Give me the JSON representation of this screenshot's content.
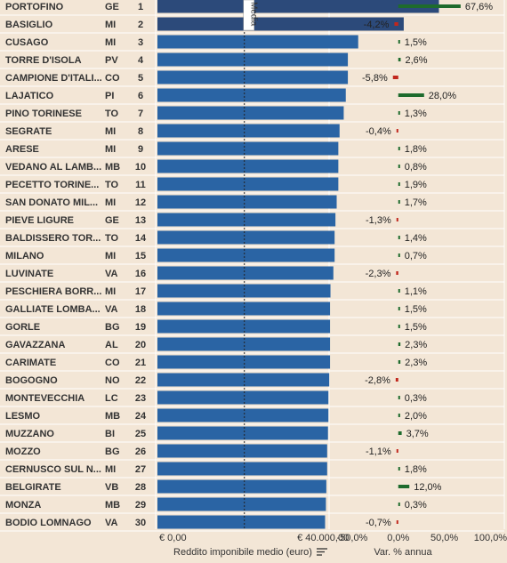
{
  "chart_data": {
    "type": "bar",
    "rows": [
      {
        "rank": "1",
        "name": "PORTOFINO",
        "prov": "GE",
        "reddito": 68000,
        "var": 67.6,
        "var_label": "67,6%"
      },
      {
        "rank": "2",
        "name": "BASIGLIO",
        "prov": "MI",
        "reddito": 59500,
        "var": -4.2,
        "var_label": "-4,2%"
      },
      {
        "rank": "3",
        "name": "CUSAGO",
        "prov": "MI",
        "reddito": 48500,
        "var": 1.5,
        "var_label": "1,5%"
      },
      {
        "rank": "4",
        "name": "TORRE D'ISOLA",
        "prov": "PV",
        "reddito": 46000,
        "var": 2.6,
        "var_label": "2,6%"
      },
      {
        "rank": "5",
        "name": "CAMPIONE D'ITALI...",
        "prov": "CO",
        "reddito": 46000,
        "var": -5.8,
        "var_label": "-5,8%"
      },
      {
        "rank": "6",
        "name": "LAJATICO",
        "prov": "PI",
        "reddito": 45500,
        "var": 28.0,
        "var_label": "28,0%"
      },
      {
        "rank": "7",
        "name": "PINO TORINESE",
        "prov": "TO",
        "reddito": 45000,
        "var": 1.3,
        "var_label": "1,3%"
      },
      {
        "rank": "8",
        "name": "SEGRATE",
        "prov": "MI",
        "reddito": 44000,
        "var": -0.4,
        "var_label": "-0,4%"
      },
      {
        "rank": "9",
        "name": "ARESE",
        "prov": "MI",
        "reddito": 43700,
        "var": 1.8,
        "var_label": "1,8%"
      },
      {
        "rank": "10",
        "name": "VEDANO AL LAMB...",
        "prov": "MB",
        "reddito": 43700,
        "var": 0.8,
        "var_label": "0,8%"
      },
      {
        "rank": "11",
        "name": "PECETTO TORINE...",
        "prov": "TO",
        "reddito": 43700,
        "var": 1.9,
        "var_label": "1,9%"
      },
      {
        "rank": "12",
        "name": "SAN DONATO MIL...",
        "prov": "MI",
        "reddito": 43300,
        "var": 1.7,
        "var_label": "1,7%"
      },
      {
        "rank": "13",
        "name": "PIEVE LIGURE",
        "prov": "GE",
        "reddito": 43000,
        "var": -1.3,
        "var_label": "-1,3%"
      },
      {
        "rank": "14",
        "name": "BALDISSERO TOR...",
        "prov": "TO",
        "reddito": 42800,
        "var": 1.4,
        "var_label": "1,4%"
      },
      {
        "rank": "15",
        "name": "MILANO",
        "prov": "MI",
        "reddito": 42800,
        "var": 0.7,
        "var_label": "0,7%"
      },
      {
        "rank": "16",
        "name": "LUVINATE",
        "prov": "VA",
        "reddito": 42500,
        "var": -2.3,
        "var_label": "-2,3%"
      },
      {
        "rank": "17",
        "name": "PESCHIERA BORR...",
        "prov": "MI",
        "reddito": 41800,
        "var": 1.1,
        "var_label": "1,1%"
      },
      {
        "rank": "18",
        "name": "GALLIATE LOMBA...",
        "prov": "VA",
        "reddito": 41700,
        "var": 1.5,
        "var_label": "1,5%"
      },
      {
        "rank": "19",
        "name": "GORLE",
        "prov": "BG",
        "reddito": 41700,
        "var": 1.5,
        "var_label": "1,5%"
      },
      {
        "rank": "20",
        "name": "GAVAZZANA",
        "prov": "AL",
        "reddito": 41700,
        "var": 2.3,
        "var_label": "2,3%"
      },
      {
        "rank": "21",
        "name": "CARIMATE",
        "prov": "CO",
        "reddito": 41700,
        "var": 2.3,
        "var_label": "2,3%"
      },
      {
        "rank": "22",
        "name": "BOGOGNO",
        "prov": "NO",
        "reddito": 41500,
        "var": -2.8,
        "var_label": "-2,8%"
      },
      {
        "rank": "23",
        "name": "MONTEVECCHIA",
        "prov": "LC",
        "reddito": 41300,
        "var": 0.3,
        "var_label": "0,3%"
      },
      {
        "rank": "24",
        "name": "LESMO",
        "prov": "MB",
        "reddito": 41300,
        "var": 2.0,
        "var_label": "2,0%"
      },
      {
        "rank": "25",
        "name": "MUZZANO",
        "prov": "BI",
        "reddito": 41200,
        "var": 3.7,
        "var_label": "3,7%"
      },
      {
        "rank": "26",
        "name": "MOZZO",
        "prov": "BG",
        "reddito": 41000,
        "var": -1.1,
        "var_label": "-1,1%"
      },
      {
        "rank": "27",
        "name": "CERNUSCO SUL N...",
        "prov": "MI",
        "reddito": 41000,
        "var": 1.8,
        "var_label": "1,8%"
      },
      {
        "rank": "28",
        "name": "BELGIRATE",
        "prov": "VB",
        "reddito": 40800,
        "var": 12.0,
        "var_label": "12,0%"
      },
      {
        "rank": "29",
        "name": "MONZA",
        "prov": "MB",
        "reddito": 40700,
        "var": 0.3,
        "var_label": "0,3%"
      },
      {
        "rank": "30",
        "name": "BODIO LOMNAGO",
        "prov": "VA",
        "reddito": 40500,
        "var": -0.7,
        "var_label": "-0,7%"
      }
    ],
    "bar_axis": {
      "title": "Reddito imponibile medio (euro)",
      "ticks": [
        {
          "value": 0,
          "label": "€ 0,00"
        },
        {
          "value": 40000,
          "label": "€ 40.000,00"
        }
      ],
      "xlim": [
        0,
        78000
      ],
      "media_label": "Media",
      "media_value": 21000
    },
    "var_axis": {
      "title": "Var. % annua",
      "ticks": [
        {
          "value": -50,
          "label": "-50,0%"
        },
        {
          "value": 0,
          "label": "0,0%"
        },
        {
          "value": 50,
          "label": "50,0%"
        },
        {
          "value": 100,
          "label": "100,0%"
        }
      ],
      "xlim": [
        -75,
        115
      ]
    },
    "colors": {
      "background": "#f3e6d6",
      "bar_top": "#2c4a7a",
      "bar": "#2a64a4",
      "positive": "#1e6b2d",
      "negative": "#c1271d",
      "grid": "#ffffff"
    }
  }
}
